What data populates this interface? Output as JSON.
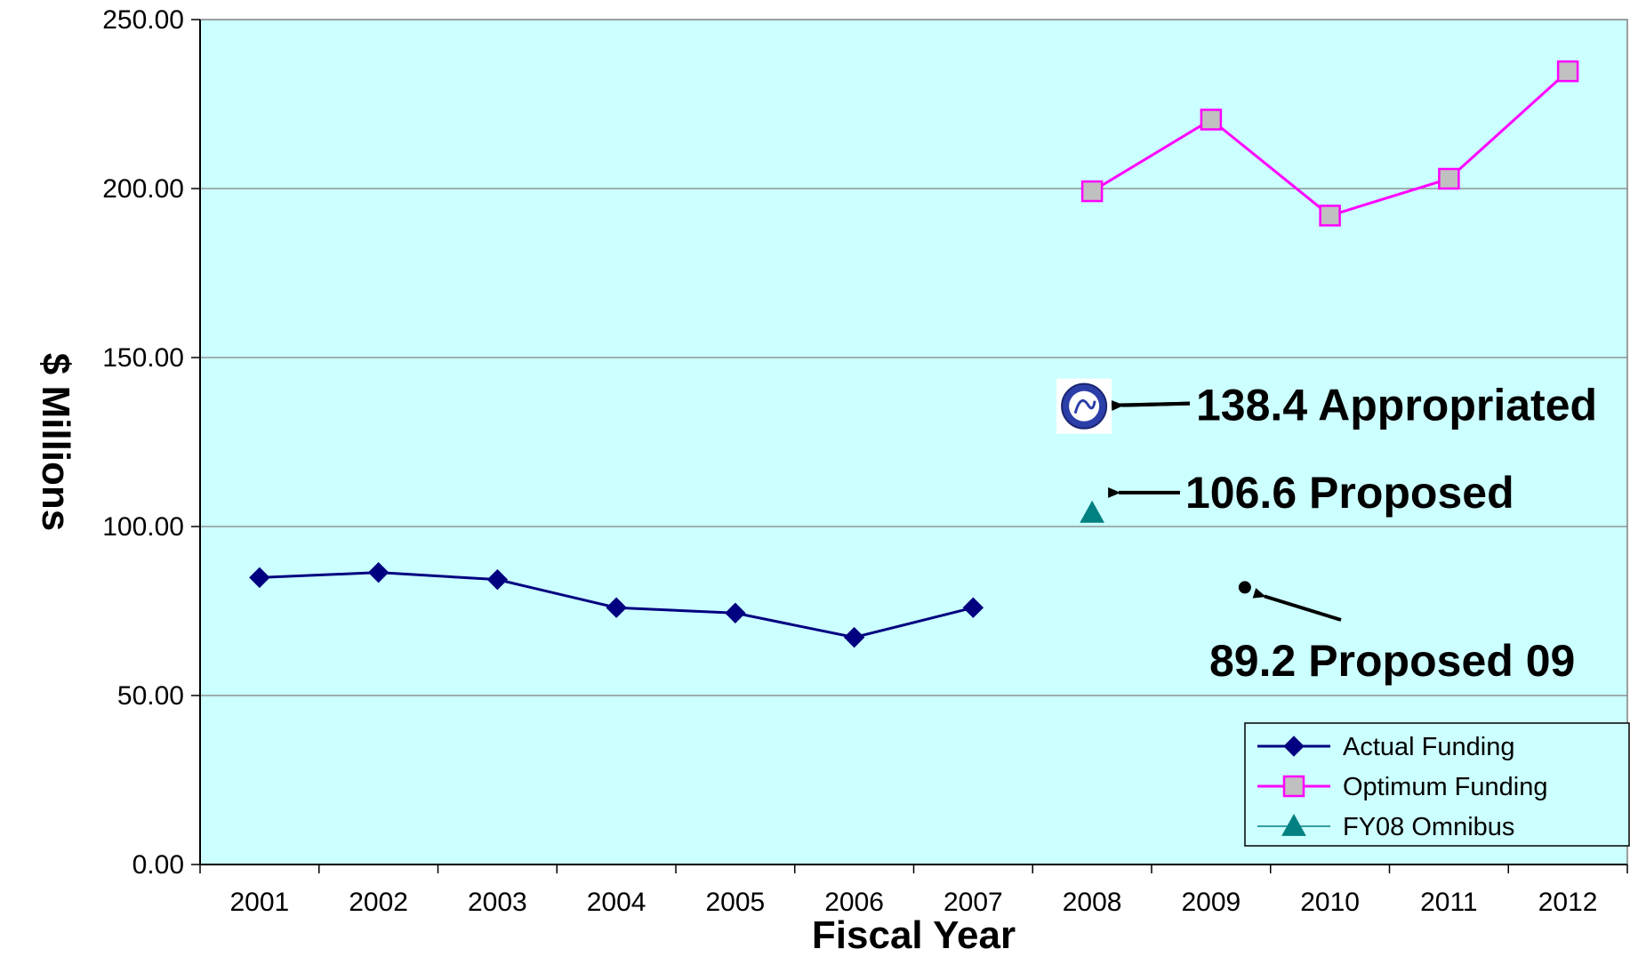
{
  "chart_data": {
    "type": "line",
    "xlabel": "Fiscal Year",
    "ylabel": "$ Millions",
    "ylim": [
      0,
      250
    ],
    "yticks": [
      "0.00",
      "50.00",
      "100.00",
      "150.00",
      "200.00",
      "250.00"
    ],
    "categories": [
      "2001",
      "2002",
      "2003",
      "2004",
      "2005",
      "2006",
      "2007",
      "2008",
      "2009",
      "2010",
      "2011",
      "2012"
    ],
    "grid": "horizontal",
    "background_color": "#ccffff",
    "legend_position": "bottom-right",
    "series": [
      {
        "name": "Actual Funding",
        "color": "#000080",
        "marker": "diamond",
        "x": [
          "2001",
          "2002",
          "2003",
          "2004",
          "2005",
          "2006",
          "2007"
        ],
        "values": [
          84.9,
          86.4,
          84.3,
          76.0,
          74.4,
          67.2,
          76.0
        ]
      },
      {
        "name": "Optimum Funding",
        "color": "#ff00ff",
        "marker": "square",
        "x": [
          "2008",
          "2009",
          "2010",
          "2011",
          "2012"
        ],
        "values": [
          199.2,
          220.4,
          192.0,
          202.9,
          234.7
        ]
      },
      {
        "name": "FY08 Omnibus",
        "color": "#008080",
        "marker": "triangle",
        "x": [
          "2008"
        ],
        "values": [
          104.0
        ]
      }
    ],
    "annotations": [
      {
        "text": "138.4 Appropriated",
        "x": "2008",
        "y": 136.4,
        "icon": "seal-icon"
      },
      {
        "text": "106.6 Proposed",
        "x": "2008",
        "y": 106.6
      },
      {
        "text": "89.2 Proposed 09",
        "x": "2009",
        "y": 82.0
      }
    ]
  }
}
